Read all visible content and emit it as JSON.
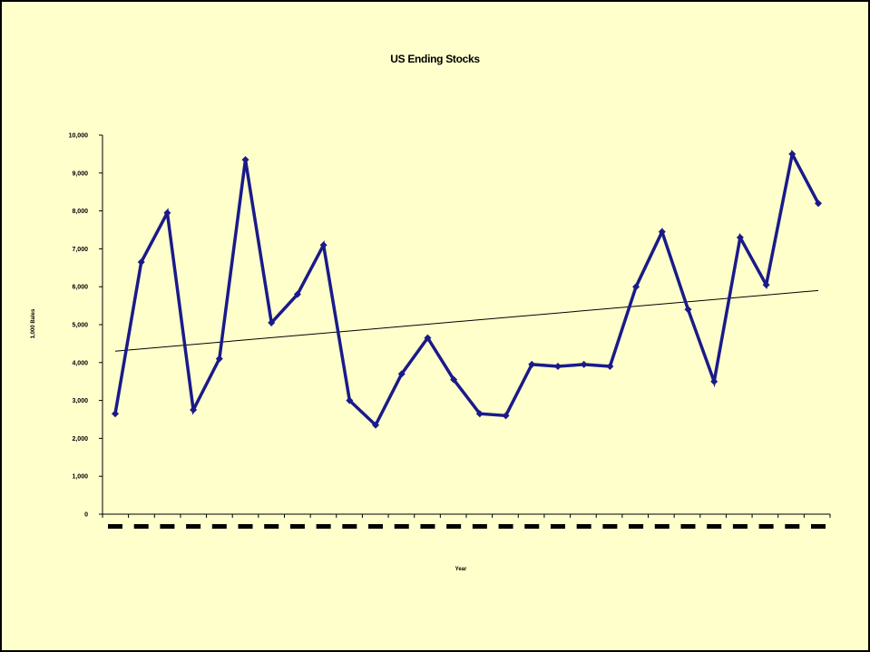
{
  "chart_data": {
    "type": "line",
    "title": "US Ending Stocks",
    "xlabel": "Year",
    "ylabel": "1,000 Bales",
    "ylim": [
      0,
      10000
    ],
    "yticks": [
      "0",
      "1,000",
      "2,000",
      "3,000",
      "4,000",
      "5,000",
      "6,000",
      "7,000",
      "8,000",
      "9,000",
      "10,000"
    ],
    "x_tick_labels_legible": false,
    "grid": false,
    "legend": "none",
    "series": [
      {
        "values": [
          2650,
          6650,
          7950,
          2750,
          4100,
          9350,
          5050,
          5800,
          7100,
          3000,
          2350,
          3700,
          4650,
          3550,
          2650,
          2600,
          3950,
          3900,
          3950,
          3900,
          6000,
          7450,
          5400,
          3500,
          7300,
          6050,
          9500,
          8200
        ],
        "color": "#1a1a8a"
      }
    ],
    "trendline": {
      "type": "linear",
      "start": 4300,
      "end": 5900,
      "color": "#000000"
    }
  }
}
